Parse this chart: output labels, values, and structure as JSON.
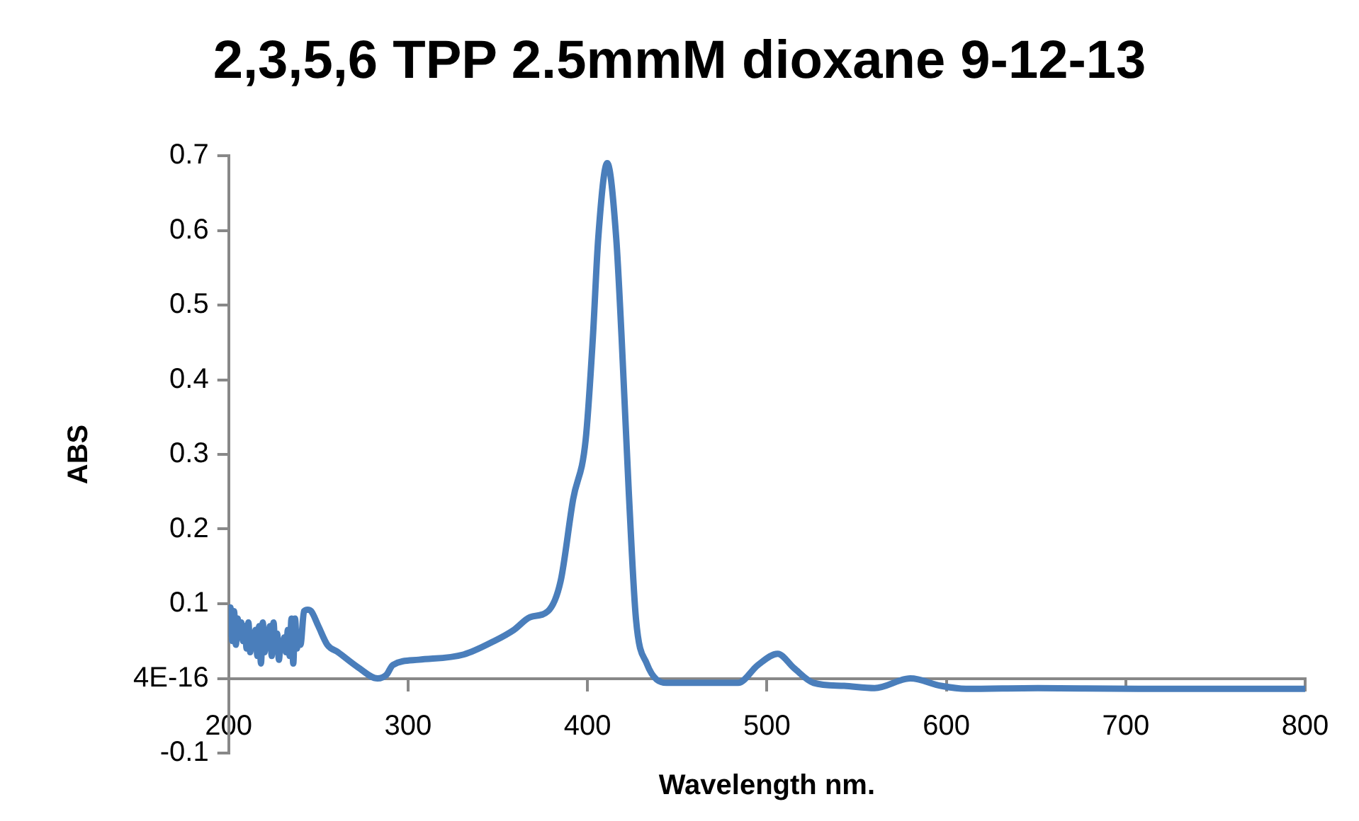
{
  "chart_data": {
    "type": "line",
    "title": "2,3,5,6 TPP 2.5mmM dioxane 9-12-13",
    "xlabel": "Wavelength nm.",
    "ylabel": "ABS",
    "xlim": [
      200,
      800
    ],
    "xticks": [
      200,
      300,
      400,
      500,
      600,
      700,
      800
    ],
    "ylim": [
      -0.1,
      0.7
    ],
    "yticks": [
      -0.1,
      {
        "value": 0,
        "label": "4E-16"
      },
      0.1,
      0.2,
      0.3,
      0.4,
      0.5,
      0.6,
      0.7
    ],
    "grid": false,
    "legend": false,
    "marker": "none",
    "line_style": "solid",
    "series": [
      {
        "color": "#4a7ebb",
        "x": [
          200,
          201,
          202,
          203,
          204,
          205,
          206,
          207,
          208,
          209,
          210,
          211,
          212,
          213,
          214,
          215,
          216,
          217,
          218,
          219,
          220,
          221,
          222,
          223,
          224,
          225,
          226,
          227,
          228,
          229,
          230,
          231,
          232,
          233,
          234,
          235,
          236,
          237,
          238,
          239,
          240,
          242,
          244,
          246,
          250,
          255,
          261,
          272,
          283,
          288,
          291.5,
          306,
          331,
          348,
          359,
          368,
          378,
          385,
          392,
          399,
          403,
          406,
          411,
          416,
          419,
          423,
          427,
          433,
          444,
          484,
          495,
          506,
          515,
          526,
          543,
          560,
          580,
          597,
          611,
          651,
          707,
          800
        ],
        "values": [
          0.06,
          0.095,
          0.05,
          0.09,
          0.045,
          0.08,
          0.055,
          0.075,
          0.05,
          0.07,
          0.04,
          0.075,
          0.035,
          0.06,
          0.045,
          0.065,
          0.03,
          0.07,
          0.02,
          0.075,
          0.035,
          0.065,
          0.05,
          0.07,
          0.03,
          0.075,
          0.04,
          0.06,
          0.025,
          0.05,
          0.04,
          0.055,
          0.035,
          0.065,
          0.03,
          0.08,
          0.02,
          0.08,
          0.04,
          0.06,
          0.045,
          0.09,
          0.092,
          0.09,
          0.07,
          0.045,
          0.035,
          0.015,
          0,
          0.005,
          0.018,
          0.025,
          0.032,
          0.05,
          0.065,
          0.082,
          0.09,
          0.13,
          0.24,
          0.32,
          0.457,
          0.59,
          0.69,
          0.59,
          0.457,
          0.25,
          0.08,
          0.02,
          -0.006,
          -0.006,
          0.018,
          0.033,
          0.014,
          -0.006,
          -0.01,
          -0.013,
          0,
          -0.01,
          -0.014,
          -0.013,
          -0.014,
          -0.014
        ]
      }
    ]
  }
}
